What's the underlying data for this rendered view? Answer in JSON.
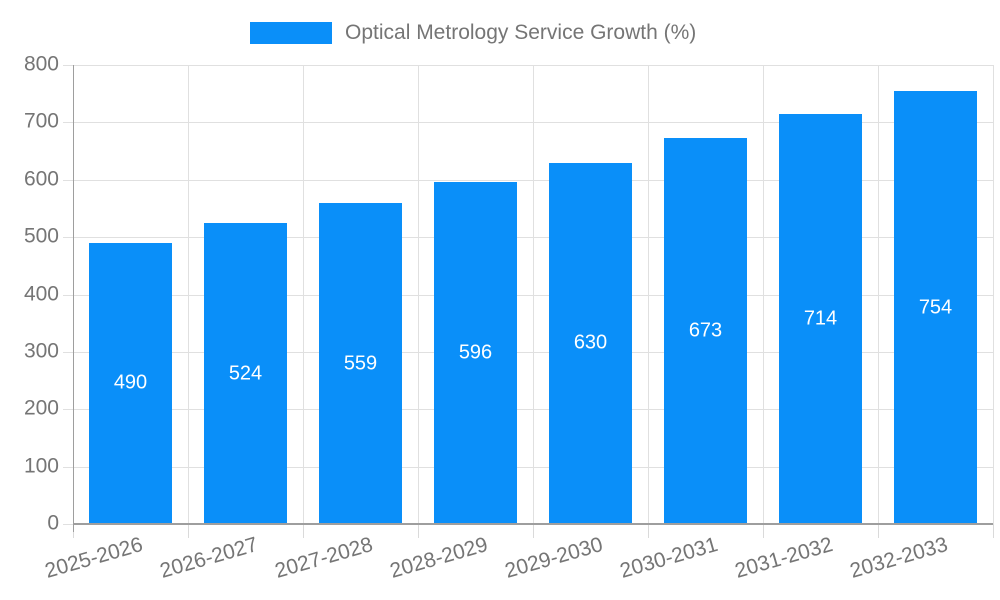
{
  "chart_data": {
    "type": "bar",
    "title": "Optical Metrology Service Growth (%)",
    "categories": [
      "2025-2026",
      "2026-2027",
      "2027-2028",
      "2028-2029",
      "2029-2030",
      "2030-2031",
      "2031-2032",
      "2032-2033"
    ],
    "values": [
      490,
      524,
      559,
      596,
      630,
      673,
      714,
      754
    ],
    "xlabel": "",
    "ylabel": "",
    "ylim": [
      0,
      800
    ],
    "yticks": [
      0,
      100,
      200,
      300,
      400,
      500,
      600,
      700,
      800
    ],
    "grid": true,
    "legend_position": "top",
    "bar_color": "#0a8ff9",
    "bar_label_color": "#ffffff",
    "axis_text_color": "#757575",
    "grid_color": "#e0e0e0",
    "axis_line_color": "#9e9e9e"
  }
}
